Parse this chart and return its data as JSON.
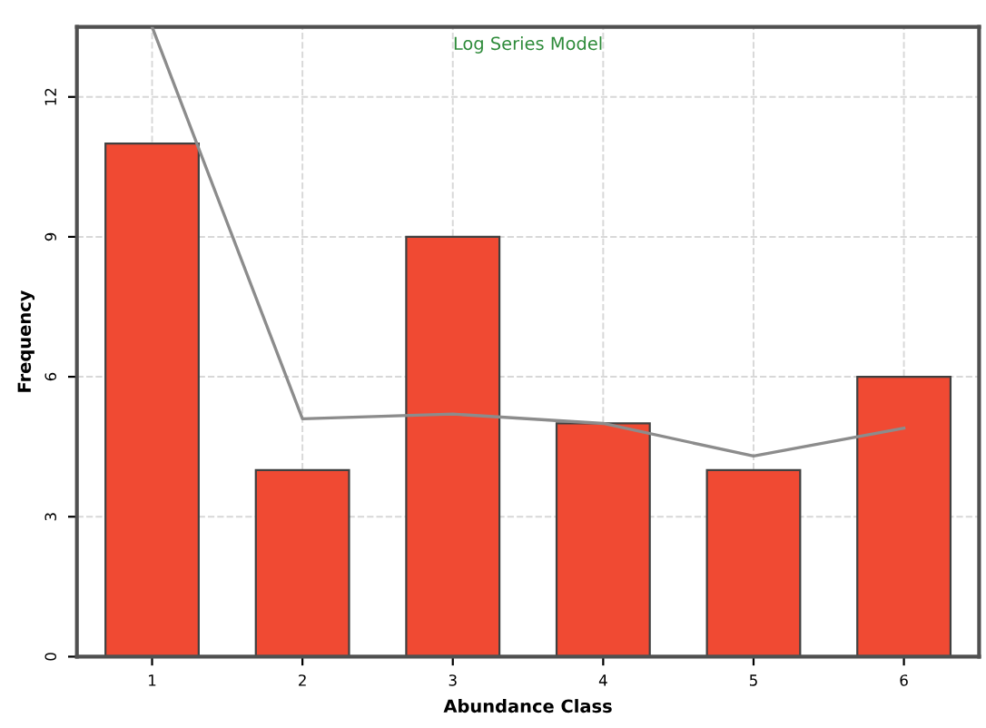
{
  "chart_data": {
    "type": "bar",
    "title": "Log Series Model",
    "xlabel": "Abundance Class",
    "ylabel": "Frequency",
    "categories": [
      "1",
      "2",
      "3",
      "4",
      "5",
      "6"
    ],
    "series": [
      {
        "color": "#f04a33",
        "values": [
          11,
          4,
          9,
          5,
          4,
          6
        ]
      },
      {
        "type": "line",
        "color": "#8c8c8c",
        "values": [
          13.5,
          5.1,
          5.2,
          5.0,
          4.3,
          4.9
        ]
      }
    ],
    "ylim": [
      0,
      13.5
    ],
    "yticks": [
      0,
      3,
      6,
      9,
      12
    ],
    "grid": true
  }
}
